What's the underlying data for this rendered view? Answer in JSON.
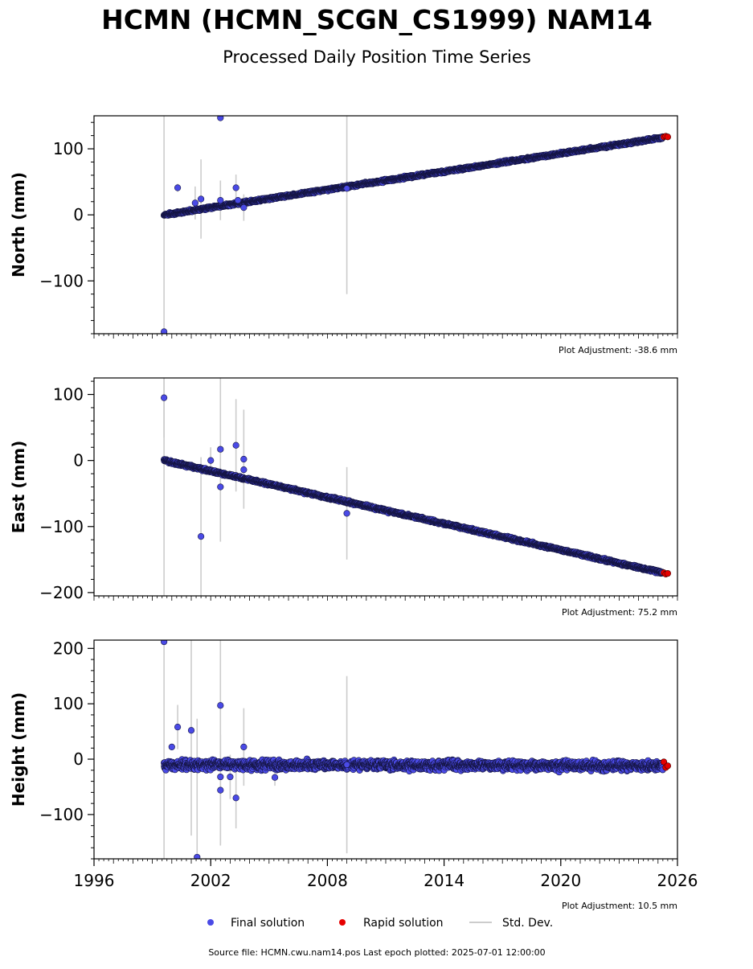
{
  "title": "HCMN (HCMN_SCGN_CS1999) NAM14",
  "subtitle": "Processed Daily Position Time Series",
  "legend": {
    "final": "Final solution",
    "rapid": "Rapid solution",
    "stddev": "Std. Dev."
  },
  "source_line": "Source file: HCMN.cwu.nam14.pos  Last epoch plotted: 2025-07-01 12:00:00",
  "colors": {
    "final_fill": "#4a4ae6",
    "final_edge": "#141440",
    "rapid_fill": "#e60000",
    "stddev_line": "#cccccc"
  },
  "chart_data": [
    {
      "type": "scatter",
      "ylabel": "North (mm)",
      "adjustment_label": "Plot Adjustment: -38.6 mm",
      "xlim": [
        1996,
        2026
      ],
      "ylim": [
        -180,
        150
      ],
      "yticks": [
        -100,
        0,
        100
      ],
      "trend": {
        "start": [
          1999.6,
          0
        ],
        "end": [
          2025.5,
          118
        ],
        "noise": 1.6
      },
      "outliers": [
        {
          "x": 1999.6,
          "y": -177
        },
        {
          "x": 2000.3,
          "y": 41,
          "err": 6
        },
        {
          "x": 2001.2,
          "y": 18,
          "err": 25
        },
        {
          "x": 2001.5,
          "y": 24,
          "err": 60
        },
        {
          "x": 2002.5,
          "y": 147
        },
        {
          "x": 2002.5,
          "y": 22,
          "err": 30
        },
        {
          "x": 2003.3,
          "y": 41,
          "err": 20
        },
        {
          "x": 2003.4,
          "y": 22
        },
        {
          "x": 2003.7,
          "y": 11,
          "err": 20
        },
        {
          "x": 2009.0,
          "y": 40,
          "err": 160
        }
      ],
      "rapid_points": [
        {
          "x": 2025.3,
          "y": 118
        },
        {
          "x": 2025.4,
          "y": 119
        },
        {
          "x": 2025.5,
          "y": 118
        }
      ]
    },
    {
      "type": "scatter",
      "ylabel": "East (mm)",
      "adjustment_label": "Plot Adjustment: 75.2 mm",
      "xlim": [
        1996,
        2026
      ],
      "ylim": [
        -205,
        125
      ],
      "yticks": [
        -200,
        -100,
        0,
        100
      ],
      "trend": {
        "start": [
          1999.6,
          0
        ],
        "end": [
          2025.5,
          -172
        ],
        "noise": 1.8
      },
      "outliers": [
        {
          "x": 1999.6,
          "y": 95,
          "err": 60
        },
        {
          "x": 2001.5,
          "y": -115,
          "err": 120
        },
        {
          "x": 2002.0,
          "y": 0,
          "err": 20
        },
        {
          "x": 2002.5,
          "y": 17,
          "err": 140
        },
        {
          "x": 2002.5,
          "y": -40
        },
        {
          "x": 2003.3,
          "y": 23,
          "err": 70
        },
        {
          "x": 2003.7,
          "y": 2,
          "err": 75
        },
        {
          "x": 2003.7,
          "y": -14
        },
        {
          "x": 2009.0,
          "y": -80,
          "err": 70
        }
      ],
      "rapid_points": [
        {
          "x": 2025.3,
          "y": -170
        },
        {
          "x": 2025.4,
          "y": -172
        },
        {
          "x": 2025.5,
          "y": -171
        }
      ]
    },
    {
      "type": "scatter",
      "ylabel": "Height (mm)",
      "adjustment_label": "Plot Adjustment: 10.5 mm",
      "xlim": [
        1996,
        2026
      ],
      "ylim": [
        -180,
        215
      ],
      "yticks": [
        -100,
        0,
        100,
        200
      ],
      "trend": {
        "start": [
          1999.6,
          -10
        ],
        "end": [
          2025.5,
          -12
        ],
        "noise": 7
      },
      "outliers": [
        {
          "x": 1999.6,
          "y": 212
        },
        {
          "x": 2000.0,
          "y": 22
        },
        {
          "x": 2000.3,
          "y": 58,
          "err": 40
        },
        {
          "x": 2001.0,
          "y": 52,
          "err": 190
        },
        {
          "x": 2001.3,
          "y": -177,
          "err": 250
        },
        {
          "x": 2002.5,
          "y": 97,
          "err": 250
        },
        {
          "x": 2002.5,
          "y": -56,
          "err": 100
        },
        {
          "x": 2002.5,
          "y": -32
        },
        {
          "x": 2003.0,
          "y": -32,
          "err": 40
        },
        {
          "x": 2003.3,
          "y": -70,
          "err": 55
        },
        {
          "x": 2003.7,
          "y": 22,
          "err": 70
        },
        {
          "x": 2005.3,
          "y": -33,
          "err": 15
        },
        {
          "x": 2009.0,
          "y": -10,
          "err": 160
        }
      ],
      "rapid_points": [
        {
          "x": 2025.3,
          "y": -5
        },
        {
          "x": 2025.4,
          "y": -15
        },
        {
          "x": 2025.5,
          "y": -12
        }
      ],
      "xticks": [
        "1996",
        "2002",
        "2008",
        "2014",
        "2020",
        "2026"
      ]
    }
  ]
}
